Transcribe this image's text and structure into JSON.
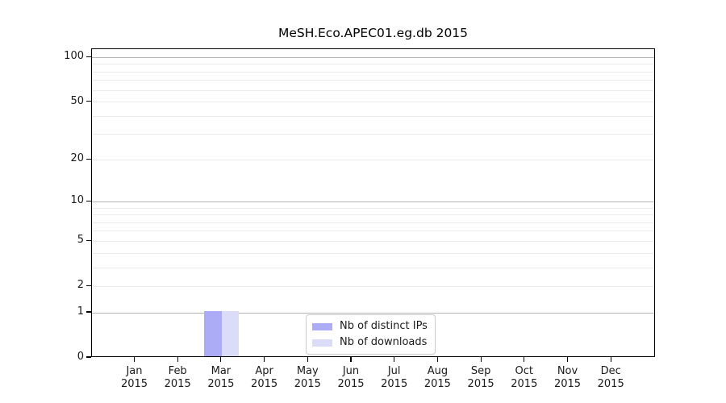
{
  "chart_data": {
    "type": "bar",
    "title": "MeSH.Eco.APEC01.eg.db 2015",
    "categories": [
      {
        "month": "Jan",
        "year": "2015"
      },
      {
        "month": "Feb",
        "year": "2015"
      },
      {
        "month": "Mar",
        "year": "2015"
      },
      {
        "month": "Apr",
        "year": "2015"
      },
      {
        "month": "May",
        "year": "2015"
      },
      {
        "month": "Jun",
        "year": "2015"
      },
      {
        "month": "Jul",
        "year": "2015"
      },
      {
        "month": "Aug",
        "year": "2015"
      },
      {
        "month": "Sep",
        "year": "2015"
      },
      {
        "month": "Oct",
        "year": "2015"
      },
      {
        "month": "Nov",
        "year": "2015"
      },
      {
        "month": "Dec",
        "year": "2015"
      }
    ],
    "series": [
      {
        "name": "Nb of distinct IPs",
        "color": "#abacf5",
        "values": [
          0,
          0,
          1,
          0,
          0,
          0,
          0,
          0,
          0,
          0,
          0,
          0
        ]
      },
      {
        "name": "Nb of downloads",
        "color": "#dbdcf8",
        "values": [
          0,
          0,
          1,
          0,
          0,
          0,
          0,
          0,
          0,
          0,
          0,
          0
        ]
      }
    ],
    "yscale": "log1p",
    "ylim": [
      0,
      113
    ],
    "yticks": [
      {
        "value": 0,
        "label": "0"
      },
      {
        "value": 1,
        "label": "1"
      },
      {
        "value": 2,
        "label": "2"
      },
      {
        "value": 5,
        "label": "5"
      },
      {
        "value": 10,
        "label": "10"
      },
      {
        "value": 20,
        "label": "20"
      },
      {
        "value": 50,
        "label": "50"
      },
      {
        "value": 100,
        "label": "100"
      }
    ],
    "grid": {
      "axis": "y",
      "major_values": [
        1,
        10,
        100
      ],
      "minor_values": [
        2,
        3,
        4,
        5,
        6,
        7,
        8,
        9,
        20,
        30,
        40,
        50,
        60,
        70,
        80,
        90
      ],
      "major_color": "#b4b4b4",
      "minor_color": "#ebebeb"
    },
    "legend": {
      "position": "bottom-center-inside"
    }
  }
}
